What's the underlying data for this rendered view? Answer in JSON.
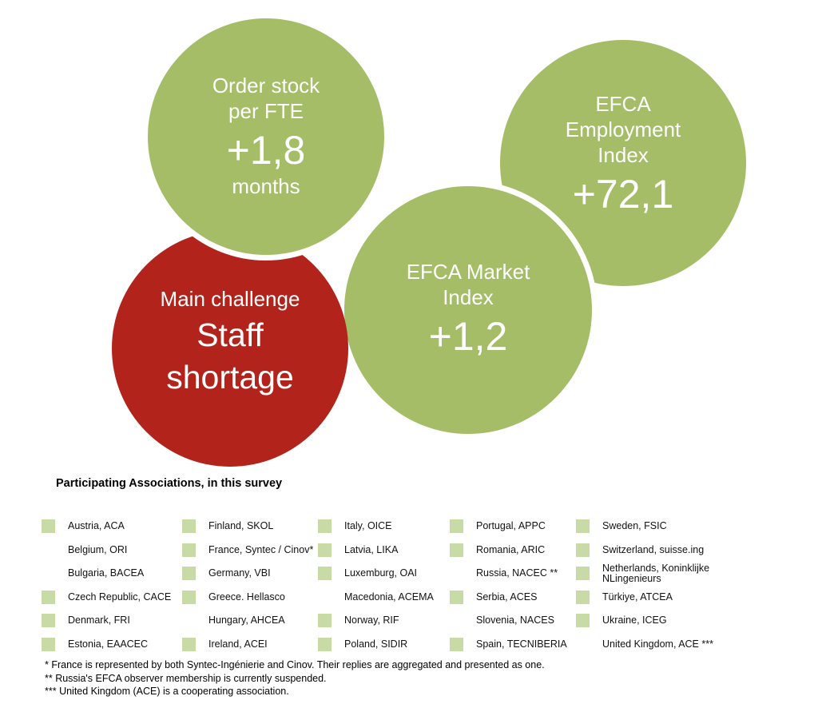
{
  "colors": {
    "green": "#a4bd66",
    "red": "#b2241b",
    "legend_square": "#c8dba6",
    "text_on_bubble": "#ffffff"
  },
  "bubbles": {
    "order_stock": {
      "title_line1": "Order stock",
      "title_line2": "per FTE",
      "value": "+1,8",
      "unit": "months"
    },
    "employment": {
      "title_line1": "EFCA",
      "title_line2": "Employment",
      "title_line3": "Index",
      "value": "+72,1"
    },
    "market": {
      "title_line1": "EFCA Market",
      "title_line2": "Index",
      "value": "+1,2"
    },
    "main_challenge": {
      "label": "Main challenge",
      "value_line1": "Staff",
      "value_line2": "shortage"
    }
  },
  "legend": {
    "title": "Participating Associations, in this survey",
    "columns": [
      {
        "items": [
          {
            "label": "Austria, ACA",
            "marked": true
          },
          {
            "label": "Belgium, ORI",
            "marked": false
          },
          {
            "label": "Bulgaria, BACEA",
            "marked": false
          },
          {
            "label": "Czech Republic, CACE",
            "marked": true
          },
          {
            "label": "Denmark, FRI",
            "marked": true
          },
          {
            "label": "Estonia, EAACEC",
            "marked": true
          }
        ]
      },
      {
        "items": [
          {
            "label": "Finland, SKOL",
            "marked": true
          },
          {
            "label": "France, Syntec / Cinov*",
            "marked": true
          },
          {
            "label": "Germany, VBI",
            "marked": true
          },
          {
            "label": "Greece. Hellasco",
            "marked": true
          },
          {
            "label": "Hungary, AHCEA",
            "marked": false
          },
          {
            "label": "Ireland, ACEI",
            "marked": true
          }
        ]
      },
      {
        "items": [
          {
            "label": "Italy, OICE",
            "marked": true
          },
          {
            "label": "Latvia, LIKA",
            "marked": true
          },
          {
            "label": "Luxemburg, OAI",
            "marked": true
          },
          {
            "label": "Macedonia, ACEMA",
            "marked": false
          },
          {
            "label": "Norway, RIF",
            "marked": true
          },
          {
            "label": "Poland, SIDIR",
            "marked": true
          }
        ]
      },
      {
        "items": [
          {
            "label": "Portugal, APPC",
            "marked": true
          },
          {
            "label": "Romania, ARIC",
            "marked": true
          },
          {
            "label": "Russia, NACEC **",
            "marked": false
          },
          {
            "label": "Serbia, ACES",
            "marked": true
          },
          {
            "label": "Slovenia, NACES",
            "marked": false
          },
          {
            "label": "Spain, TECNIBERIA",
            "marked": true
          }
        ]
      },
      {
        "items": [
          {
            "label": "Sweden, FSIC",
            "marked": true
          },
          {
            "label": "Switzerland, suisse.ing",
            "marked": true
          },
          {
            "label": "Netherlands, Koninklijke NLingenieurs",
            "marked": true
          },
          {
            "label": "Türkiye, ATCEA",
            "marked": true
          },
          {
            "label": "Ukraine, ICEG",
            "marked": true
          },
          {
            "label": "United Kingdom, ACE ***",
            "marked": false
          }
        ]
      }
    ]
  },
  "footnotes": [
    "* France is represented by both Syntec-Ingénierie and Cinov. Their replies are aggregated and presented as one.",
    "** Russia's EFCA observer membership is currently suspended.",
    "*** United Kingdom (ACE) is a cooperating association."
  ]
}
